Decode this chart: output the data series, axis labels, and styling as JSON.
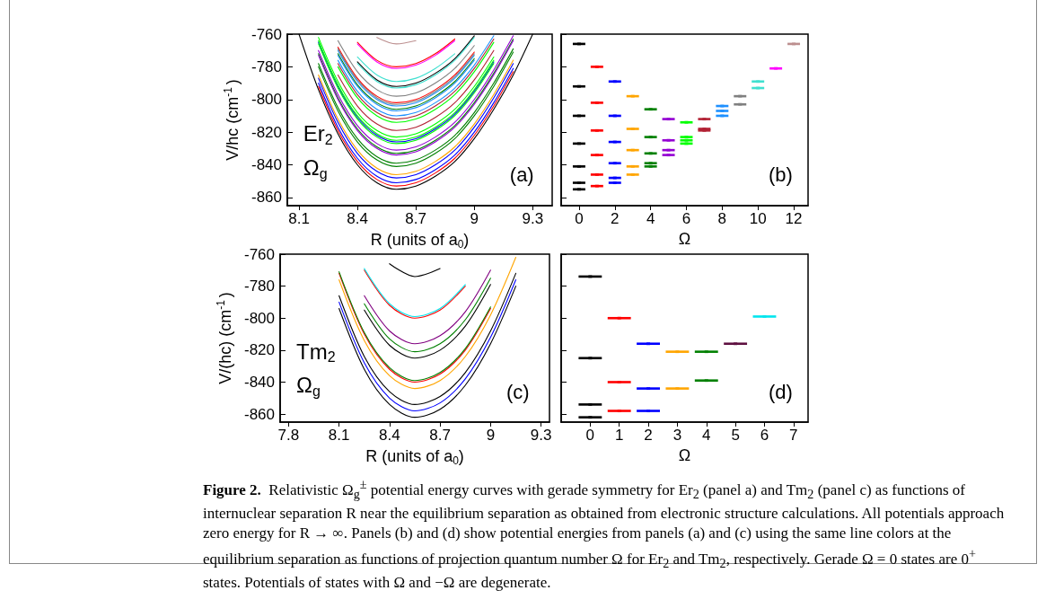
{
  "chart_data": [
    {
      "type": "line",
      "marker": "none",
      "xlabel": "R (units of a$_{0}$)",
      "ylabel": "V/hc (cm$^{-1}$)",
      "annotations": [
        "Er$_{2}$",
        "Ω$_{g}$",
        "(a)"
      ],
      "xlim": [
        8.04,
        9.4
      ],
      "xticks": [
        8.1,
        8.4,
        8.7,
        9,
        9.3
      ],
      "ylim": [
        -865,
        -760
      ],
      "yticks": [
        -760,
        -780,
        -800,
        -820,
        -840,
        -860
      ],
      "x": [
        8.1,
        8.2,
        8.3,
        8.4,
        8.5,
        8.6,
        8.7,
        8.8,
        8.9,
        9.0,
        9.1,
        9.2,
        9.3
      ],
      "series": [
        {
          "color": "#000000",
          "values": [
            null,
            null,
            null,
            -777,
            -788,
            -792,
            -790,
            -784,
            -775,
            -761,
            null,
            null,
            null
          ]
        },
        {
          "color": "#000000",
          "values": [
            -760,
            -794,
            -821,
            -840,
            -851,
            -855,
            -853,
            -847,
            -838,
            -824,
            -806,
            -785,
            -760
          ]
        },
        {
          "color": "#ff0000",
          "values": [
            null,
            null,
            null,
            -765,
            -776,
            -780,
            -778,
            -772,
            -763,
            null,
            null,
            null,
            null
          ]
        },
        {
          "color": "#ff0000",
          "values": [
            null,
            null,
            -768,
            -787,
            -798,
            -802,
            -800,
            -794,
            -785,
            -771,
            null,
            null,
            null
          ]
        },
        {
          "color": "#ff0000",
          "values": [
            null,
            -792,
            -819,
            -838,
            -849,
            -853,
            -851,
            -845,
            -836,
            -822,
            -804,
            -783,
            null
          ]
        },
        {
          "color": "#0000ff",
          "values": [
            null,
            -765,
            -792,
            -811,
            -822,
            -826,
            -824,
            -818,
            -809,
            -795,
            -777,
            null,
            null
          ]
        },
        {
          "color": "#0000ff",
          "values": [
            null,
            -787,
            -814,
            -833,
            -844,
            -848,
            -846,
            -840,
            -831,
            -817,
            -799,
            -778,
            null
          ]
        },
        {
          "color": "#0000ff",
          "values": [
            null,
            -790,
            -817,
            -836,
            -847,
            -851,
            -849,
            -843,
            -834,
            -820,
            -802,
            -781,
            null
          ]
        },
        {
          "color": "#ffa500",
          "values": [
            null,
            -785,
            -812,
            -831,
            -842,
            -846,
            -844,
            -838,
            -829,
            -815,
            -797,
            -776,
            null
          ]
        },
        {
          "color": "#008000",
          "values": [
            null,
            null,
            -772,
            -791,
            -802,
            -806,
            -804,
            -798,
            -789,
            -775,
            null,
            null,
            null
          ]
        },
        {
          "color": "#008000",
          "values": [
            null,
            -772,
            -799,
            -818,
            -829,
            -833,
            -831,
            -825,
            -816,
            -802,
            -784,
            -763,
            null
          ]
        },
        {
          "color": "#008000",
          "values": [
            null,
            -778,
            -805,
            -824,
            -835,
            -839,
            -837,
            -831,
            -822,
            -808,
            -790,
            -769,
            null
          ]
        },
        {
          "color": "#008000",
          "values": [
            null,
            -780,
            -807,
            -826,
            -837,
            -841,
            -839,
            -833,
            -824,
            -810,
            -792,
            -771,
            null
          ]
        },
        {
          "color": "#9400d3",
          "values": [
            null,
            -770,
            -797,
            -816,
            -827,
            -831,
            -829,
            -823,
            -814,
            -800,
            -782,
            -761,
            null
          ]
        },
        {
          "color": "#9400d3",
          "values": [
            null,
            -773,
            -800,
            -819,
            -830,
            -834,
            -832,
            -826,
            -817,
            -803,
            -785,
            -764,
            null
          ]
        },
        {
          "color": "#00ff00",
          "values": [
            null,
            null,
            -780,
            -799,
            -810,
            -814,
            -812,
            -806,
            -797,
            -783,
            -765,
            null,
            null
          ]
        },
        {
          "color": "#00ff00",
          "values": [
            null,
            -762,
            -789,
            -808,
            -819,
            -823,
            -821,
            -815,
            -806,
            -792,
            -774,
            null,
            null
          ]
        },
        {
          "color": "#00ff00",
          "values": [
            null,
            -764,
            -791,
            -810,
            -821,
            -825,
            -823,
            -817,
            -808,
            -794,
            -776,
            null,
            null
          ]
        },
        {
          "color": "#00ff00",
          "values": [
            null,
            -766,
            -793,
            -812,
            -823,
            -827,
            -825,
            -819,
            -810,
            -796,
            -778,
            null,
            null
          ]
        },
        {
          "color": "#b22234",
          "values": [
            null,
            null,
            -778,
            -797,
            -808,
            -812,
            -810,
            -804,
            -795,
            -781,
            -763,
            null,
            null
          ]
        },
        {
          "color": "#b22234",
          "values": [
            null,
            null,
            -785,
            -804,
            -815,
            -819,
            -817,
            -811,
            -802,
            -788,
            -770,
            null,
            null
          ]
        },
        {
          "color": "#1e90ff",
          "values": [
            null,
            null,
            -770,
            -789,
            -800,
            -804,
            -802,
            -796,
            -787,
            -773,
            null,
            null,
            null
          ]
        },
        {
          "color": "#1e90ff",
          "values": [
            null,
            null,
            -773,
            -792,
            -803,
            -807,
            -805,
            -799,
            -790,
            -776,
            null,
            null,
            null
          ]
        },
        {
          "color": "#1e90ff",
          "values": [
            null,
            null,
            -776,
            -795,
            -806,
            -810,
            -808,
            -802,
            -793,
            -779,
            -761,
            null,
            null
          ]
        },
        {
          "color": "#808080",
          "values": [
            null,
            null,
            -764,
            -783,
            -794,
            -798,
            -796,
            -790,
            -781,
            -767,
            null,
            null,
            null
          ]
        },
        {
          "color": "#808080",
          "values": [
            null,
            null,
            -769,
            -788,
            -799,
            -803,
            -801,
            -795,
            -786,
            -772,
            null,
            null,
            null
          ]
        },
        {
          "color": "#40e0d0",
          "values": [
            null,
            null,
            null,
            -774,
            -785,
            -789,
            -787,
            -781,
            -772,
            null,
            null,
            null,
            null
          ]
        },
        {
          "color": "#40e0d0",
          "values": [
            null,
            null,
            null,
            -778,
            -789,
            -793,
            -791,
            -785,
            -776,
            -762,
            null,
            null,
            null
          ]
        },
        {
          "color": "#ff00ff",
          "values": [
            null,
            null,
            null,
            -766,
            -777,
            -781,
            -779,
            -773,
            -764,
            null,
            null,
            null,
            null
          ]
        },
        {
          "color": "#bc8f8f",
          "values": [
            null,
            null,
            null,
            null,
            -762,
            -766,
            -764,
            null,
            null,
            null,
            null,
            null,
            null
          ]
        }
      ]
    },
    {
      "type": "scatter",
      "xlabel": "Ω",
      "annotations": [
        "(b)"
      ],
      "xlim": [
        -1,
        12.8
      ],
      "xticks": [
        0,
        2,
        4,
        6,
        8,
        10,
        12
      ],
      "ylim": [
        -865,
        -760
      ],
      "yticks": [
        -760,
        -780,
        -800,
        -820,
        -840,
        -860
      ],
      "tick_labels": "x",
      "series": [
        {
          "color": "#000000",
          "x": [
            0,
            0,
            0,
            0,
            0,
            0,
            0
          ],
          "values": [
            -766,
            -792,
            -810,
            -827,
            -841,
            -851,
            -855
          ],
          "xerrors": [
            0.35,
            0.35,
            0.35,
            0.35,
            0.35,
            0.35,
            0.35
          ]
        },
        {
          "color": "#ff0000",
          "x": [
            1,
            1,
            1,
            1,
            1,
            1
          ],
          "values": [
            -780,
            -802,
            -819,
            -834,
            -846,
            -853
          ],
          "xerrors": [
            0.35,
            0.35,
            0.35,
            0.35,
            0.35,
            0.35
          ]
        },
        {
          "color": "#0000ff",
          "x": [
            2,
            2,
            2,
            2,
            2,
            2
          ],
          "values": [
            -789,
            -810,
            -826,
            -839,
            -848,
            -851
          ],
          "xerrors": [
            0.35,
            0.35,
            0.35,
            0.35,
            0.35,
            0.35
          ]
        },
        {
          "color": "#ffa500",
          "x": [
            3,
            3,
            3,
            3,
            3
          ],
          "values": [
            -798,
            -818,
            -831,
            -841,
            -846
          ],
          "xerrors": [
            0.35,
            0.35,
            0.35,
            0.35,
            0.35
          ]
        },
        {
          "color": "#008000",
          "x": [
            4,
            4,
            4,
            4,
            4
          ],
          "values": [
            -806,
            -823,
            -833,
            -839,
            -841
          ],
          "xerrors": [
            0.35,
            0.35,
            0.35,
            0.35,
            0.35
          ]
        },
        {
          "color": "#9400d3",
          "x": [
            5,
            5,
            5,
            5
          ],
          "values": [
            -812,
            -825,
            -831,
            -834
          ],
          "xerrors": [
            0.35,
            0.35,
            0.35,
            0.35
          ]
        },
        {
          "color": "#00ff00",
          "x": [
            6,
            6,
            6,
            6
          ],
          "values": [
            -814,
            -823,
            -825,
            -827
          ],
          "xerrors": [
            0.35,
            0.35,
            0.35,
            0.35
          ]
        },
        {
          "color": "#b22234",
          "x": [
            7,
            7,
            7
          ],
          "values": [
            -812,
            -818,
            -819
          ],
          "xerrors": [
            0.35,
            0.35,
            0.35
          ]
        },
        {
          "color": "#1e90ff",
          "x": [
            8,
            8,
            8
          ],
          "values": [
            -804,
            -807,
            -810
          ],
          "xerrors": [
            0.35,
            0.35,
            0.35
          ]
        },
        {
          "color": "#808080",
          "x": [
            9,
            9
          ],
          "values": [
            -798,
            -803
          ],
          "xerrors": [
            0.35,
            0.35
          ]
        },
        {
          "color": "#40e0d0",
          "x": [
            10,
            10
          ],
          "values": [
            -789,
            -793
          ],
          "xerrors": [
            0.35,
            0.35
          ]
        },
        {
          "color": "#ff00ff",
          "x": [
            11
          ],
          "values": [
            -781
          ],
          "xerrors": [
            0.35
          ]
        },
        {
          "color": "#bc8f8f",
          "x": [
            12
          ],
          "values": [
            -766
          ],
          "xerrors": [
            0.35
          ]
        }
      ]
    },
    {
      "type": "line",
      "marker": "none",
      "xlabel": "R (units of a$_{0}$)",
      "ylabel": "V/(hc) (cm$^{-1}$)",
      "annotations": [
        "Tm$_{2}$",
        "Ω$_{g}$",
        "(c)"
      ],
      "xlim": [
        7.75,
        9.35
      ],
      "xticks": [
        7.8,
        8.1,
        8.4,
        8.7,
        9,
        9.3
      ],
      "ylim": [
        -865,
        -760
      ],
      "yticks": [
        -760,
        -780,
        -800,
        -820,
        -840,
        -860
      ],
      "x": [
        8.1,
        8.25,
        8.4,
        8.55,
        8.7,
        8.85,
        9.0,
        9.15
      ],
      "series": [
        {
          "color": "#000000",
          "values": [
            null,
            null,
            -766,
            -774,
            -769,
            null,
            null,
            null
          ]
        },
        {
          "color": "#000000",
          "values": [
            null,
            -795,
            -817,
            -825,
            -820,
            -805,
            -779,
            null
          ]
        },
        {
          "color": "#000000",
          "values": [
            -786,
            -824,
            -846,
            -854,
            -849,
            -834,
            -808,
            -772
          ]
        },
        {
          "color": "#000000",
          "values": [
            -794,
            -832,
            -854,
            -862,
            -857,
            -842,
            -816,
            -780
          ]
        },
        {
          "color": "#ff0000",
          "values": [
            null,
            -770,
            -792,
            -800,
            -795,
            -780,
            null,
            null
          ]
        },
        {
          "color": "#ff0000",
          "values": [
            -772,
            -810,
            -832,
            -840,
            -835,
            -820,
            -794,
            null
          ]
        },
        {
          "color": "#0000ff",
          "values": [
            -790,
            -828,
            -850,
            -858,
            -853,
            -838,
            -812,
            -776
          ]
        },
        {
          "color": "#ffa500",
          "values": [
            -776,
            -814,
            -836,
            -844,
            -839,
            -824,
            -798,
            -762
          ]
        },
        {
          "color": "#008000",
          "values": [
            null,
            -791,
            -813,
            -821,
            -816,
            -801,
            -775,
            null
          ]
        },
        {
          "color": "#008000",
          "values": [
            -771,
            -809,
            -831,
            -839,
            -834,
            -819,
            -793,
            null
          ]
        },
        {
          "color": "#800080",
          "values": [
            null,
            -786,
            -808,
            -816,
            -811,
            -796,
            -770,
            null
          ]
        },
        {
          "color": "#00e5ee",
          "values": [
            null,
            -769,
            -791,
            -799,
            -794,
            -779,
            null,
            null
          ]
        }
      ]
    },
    {
      "type": "scatter",
      "xlabel": "Ω",
      "annotations": [
        "(d)",
        "Figure 2.",
        "Relativistic Ω$_{g}$$^{±}$ potential energy curves with gerade symmetry for Er$_{2}$ (panel a) and Tm$_{2}$ (panel c) as functions of internuclear separation R near the equilibrium separation as obtained from electronic structure calculations. All potentials approach zero energy for R → ∞. Panels (b) and (d) show potential energies from panels (a) and (c) using the same line colors at the equilibrium separation as functions of projection quantum number Ω for Er$_{2}$ and Tm$_{2}$, respectively. Gerade Ω = 0 states are 0$^{+}$ states. Potentials of states with Ω and −Ω are degenerate."
      ],
      "xlim": [
        -1,
        7.5
      ],
      "xticks": [
        0,
        1,
        2,
        3,
        4,
        5,
        6,
        7
      ],
      "ylim": [
        -865,
        -760
      ],
      "yticks": [
        -760,
        -780,
        -800,
        -820,
        -840,
        -860
      ],
      "tick_labels": "x",
      "series": [
        {
          "color": "#000000",
          "x": [
            0,
            0,
            0,
            0
          ],
          "values": [
            -774,
            -825,
            -854,
            -862
          ],
          "xerrors": [
            0.4,
            0.4,
            0.4,
            0.4
          ]
        },
        {
          "color": "#ff0000",
          "x": [
            1,
            1,
            1
          ],
          "values": [
            -800,
            -840,
            -858
          ],
          "xerrors": [
            0.4,
            0.4,
            0.4
          ]
        },
        {
          "color": "#0000ff",
          "x": [
            2,
            2,
            2
          ],
          "values": [
            -816,
            -844,
            -858
          ],
          "xerrors": [
            0.4,
            0.4,
            0.4
          ]
        },
        {
          "color": "#ffa500",
          "x": [
            3,
            3
          ],
          "values": [
            -821,
            -844
          ],
          "xerrors": [
            0.4,
            0.4
          ]
        },
        {
          "color": "#008000",
          "x": [
            4,
            4
          ],
          "values": [
            -821,
            -839
          ],
          "xerrors": [
            0.4,
            0.4
          ]
        },
        {
          "color": "#5e1040",
          "x": [
            5
          ],
          "values": [
            -816
          ],
          "xerrors": [
            0.4
          ]
        },
        {
          "color": "#00e5ee",
          "x": [
            6
          ],
          "values": [
            -799
          ],
          "xerrors": [
            0.4
          ]
        }
      ]
    }
  ]
}
